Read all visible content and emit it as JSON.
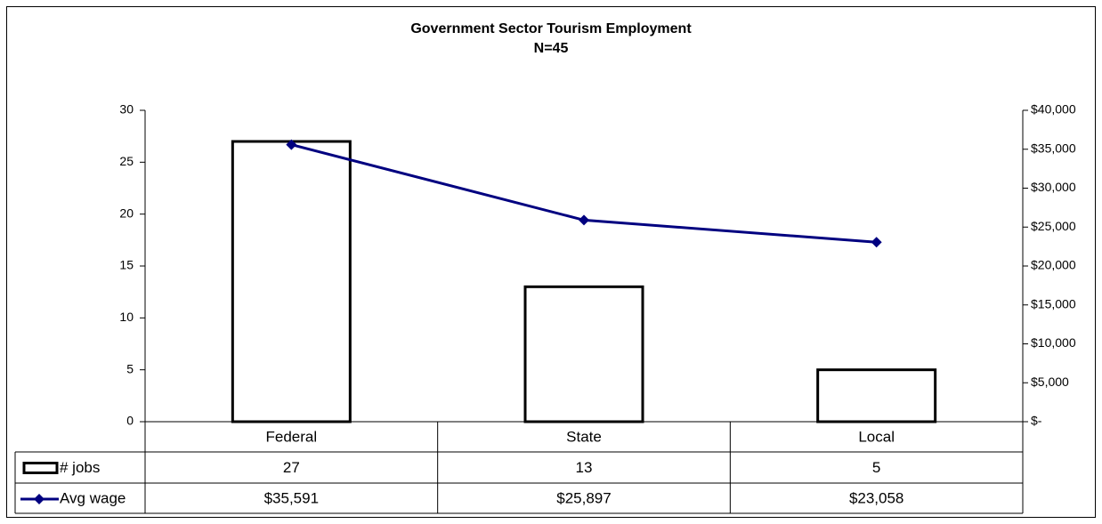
{
  "chart_data": {
    "type": "bar",
    "title": "Government Sector Tourism Employment",
    "subtitle": "N=45",
    "categories": [
      "Federal",
      "State",
      "Local"
    ],
    "series": [
      {
        "name": "# jobs",
        "kind": "bar",
        "axis": "left",
        "values": [
          27,
          13,
          5
        ],
        "labels": [
          "27",
          "13",
          "5"
        ]
      },
      {
        "name": "Avg wage",
        "kind": "line",
        "axis": "right",
        "marker": "diamond",
        "values": [
          35591,
          25897,
          23058
        ],
        "labels": [
          "$35,591",
          "$25,897",
          "$23,058"
        ]
      }
    ],
    "y_left": {
      "ylim": [
        0,
        30
      ],
      "ticks": [
        0,
        5,
        10,
        15,
        20,
        25,
        30
      ],
      "tick_labels": [
        "0",
        "5",
        "10",
        "15",
        "20",
        "25",
        "30"
      ]
    },
    "y_right": {
      "ylim": [
        0,
        40000
      ],
      "ticks": [
        0,
        5000,
        10000,
        15000,
        20000,
        25000,
        30000,
        35000,
        40000
      ],
      "tick_labels": [
        "$-",
        "$5,000",
        "$10,000",
        "$15,000",
        "$20,000",
        "$25,000",
        "$30,000",
        "$35,000",
        "$40,000"
      ]
    },
    "data_table": true,
    "grid": false,
    "colors": {
      "bar_fill": "#ffffff",
      "bar_stroke": "#000000",
      "line": "#000080"
    }
  }
}
